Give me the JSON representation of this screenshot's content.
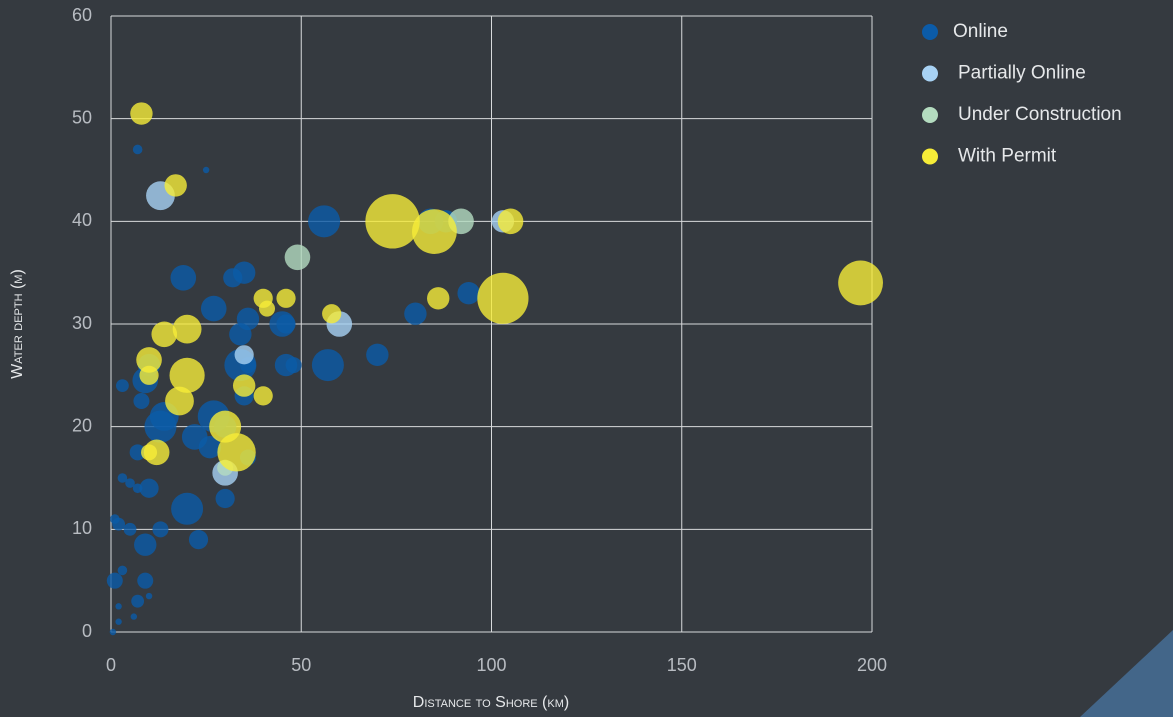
{
  "chart_data": {
    "type": "bubble",
    "x_label": "Distance to Shore (km)",
    "y_label": "Water depth (m)",
    "xlim": [
      0,
      200
    ],
    "xticks": [
      0,
      50,
      100,
      150,
      200
    ],
    "ylim": [
      0,
      60
    ],
    "yticks": [
      0,
      10,
      20,
      30,
      40,
      50,
      60
    ],
    "grid": true,
    "legend": "right",
    "series": [
      {
        "name": "Online",
        "color": "#0b5ba8",
        "x": [
          56,
          84,
          88,
          19,
          35,
          32,
          27,
          36,
          45,
          46,
          34,
          34,
          46,
          48,
          57,
          70,
          80,
          94,
          10,
          8,
          9,
          14,
          13,
          22,
          27,
          30,
          26,
          35,
          36,
          3,
          7,
          10,
          20,
          23,
          13,
          9,
          5,
          2,
          1,
          9,
          1,
          7,
          3,
          3,
          5,
          7,
          2,
          2,
          0.5,
          7,
          25,
          30,
          10,
          6,
          36
        ],
        "values": [
          40,
          40,
          40,
          34.5,
          35,
          34.5,
          31.5,
          30.5,
          30,
          30,
          29,
          26,
          26,
          26,
          26,
          27,
          31,
          33,
          26,
          22.5,
          24.5,
          21,
          20,
          19,
          21,
          20,
          18,
          23,
          26,
          24,
          17.5,
          14,
          12,
          9,
          10,
          8.5,
          10,
          10.5,
          11,
          5,
          5,
          3,
          6,
          15,
          14.5,
          14,
          2.5,
          1,
          0,
          47,
          45,
          13,
          3.5,
          1.5,
          17
        ],
        "sizes": [
          10,
          8,
          7,
          8,
          7,
          6,
          8,
          7,
          8,
          6,
          7,
          10,
          7,
          5,
          10,
          7,
          7,
          7,
          7,
          5,
          8,
          9,
          10,
          8,
          10,
          7,
          7,
          6,
          5,
          4,
          5,
          6,
          10,
          6,
          5,
          7,
          4,
          4,
          3,
          5,
          5,
          4,
          3,
          3,
          3,
          3,
          2,
          2,
          2,
          3,
          2,
          6,
          2,
          2,
          5
        ]
      },
      {
        "name": "Partially Online",
        "color": "#a8d2f4",
        "x": [
          13,
          60,
          30,
          103,
          35
        ],
        "values": [
          42.5,
          30,
          15.5,
          40,
          27
        ],
        "sizes": [
          9,
          8,
          8,
          7,
          6
        ]
      },
      {
        "name": "Under Construction",
        "color": "#b4dcc0",
        "x": [
          49,
          92,
          30
        ],
        "values": [
          36.5,
          40,
          16
        ],
        "sizes": [
          8,
          8,
          5
        ]
      },
      {
        "name": "With Permit",
        "color": "#f6ec38",
        "x": [
          8,
          17,
          74,
          85,
          105,
          103,
          197,
          86,
          40,
          46,
          58,
          41,
          20,
          14,
          10,
          20,
          10,
          18,
          30,
          33,
          12,
          35,
          40,
          10
        ],
        "values": [
          50.5,
          43.5,
          40,
          39,
          40,
          32.5,
          34,
          32.5,
          32.5,
          32.5,
          31,
          31.5,
          29.5,
          29,
          26.5,
          25,
          25,
          22.5,
          20,
          17.5,
          17.5,
          24,
          23,
          17.5
        ],
        "sizes": [
          7,
          7,
          17,
          14,
          8,
          16,
          14,
          7,
          6,
          6,
          6,
          5,
          9,
          8,
          8,
          11,
          6,
          9,
          10,
          12,
          8,
          7,
          6,
          5
        ]
      }
    ]
  }
}
